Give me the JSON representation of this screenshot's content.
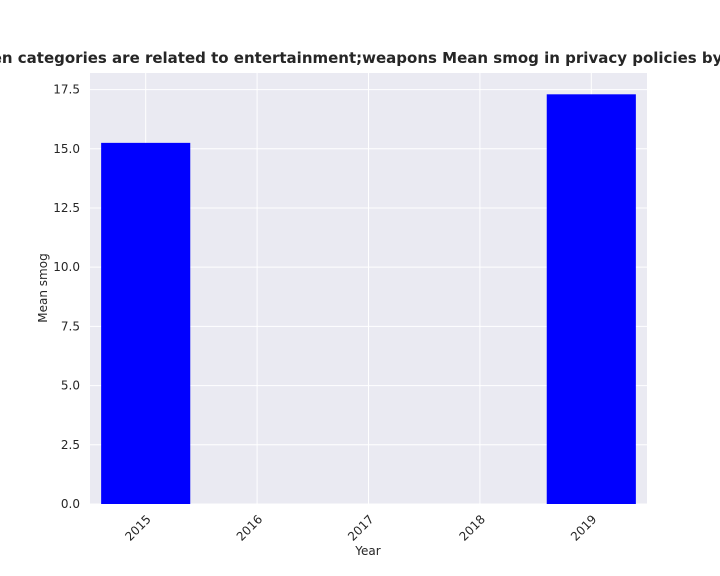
{
  "chart_data": {
    "type": "bar",
    "title": "when categories are related to entertainment;weapons Mean smog in privacy policies by Year",
    "xlabel": "Year",
    "ylabel": "Mean smog",
    "categories": [
      "2015",
      "2016",
      "2017",
      "2018",
      "2019"
    ],
    "values": [
      15.25,
      null,
      null,
      null,
      17.3
    ],
    "ylim": [
      0,
      18.2
    ],
    "yticks": [
      0.0,
      2.5,
      5.0,
      7.5,
      10.0,
      12.5,
      15.0,
      17.5
    ],
    "ytick_labels": [
      "0.0",
      "2.5",
      "5.0",
      "7.5",
      "10.0",
      "12.5",
      "15.0",
      "17.5"
    ],
    "grid": true,
    "bar_color": "#0000ff",
    "plot_background": "#eaeaf2",
    "grid_color": "#ffffff"
  }
}
